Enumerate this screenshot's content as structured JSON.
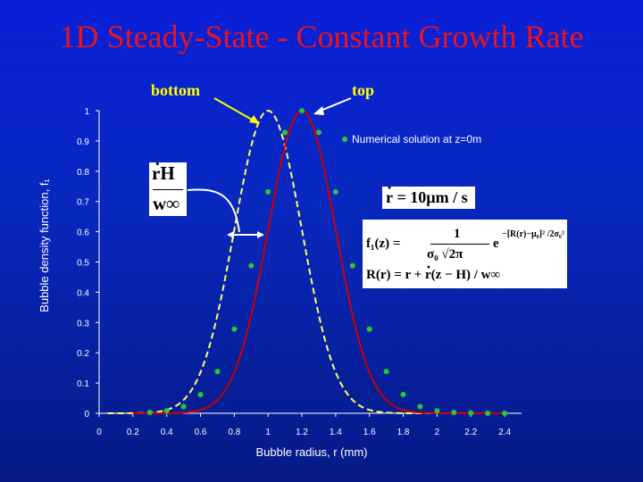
{
  "slide": {
    "title": "1D Steady-State - Constant Growth Rate",
    "background_color": "#0a1fd8",
    "title_color": "#e8141e"
  },
  "annotations": {
    "bottom_label": "bottom",
    "top_label": "top",
    "label_color": "#ffff00",
    "rh_numerator": "rH",
    "rh_denominator": "w∞",
    "growth_rate_prefix": "r",
    "growth_rate_value": " = 10µm / s",
    "eq_line1_lhs": "f₁(z) =",
    "eq_line1_num": "1",
    "eq_line1_den": "σ₀ √2π",
    "eq_line1_exp_base": "e",
    "eq_line1_exponent": "−[R(r)−µ₀]² /2σ₀²",
    "eq_line2_a": "R(r) = r + ",
    "eq_line2_r": "r",
    "eq_line2_b": "(z − H) / w∞"
  },
  "chart_data": {
    "type": "line",
    "xlabel": "Bubble radius, r (mm)",
    "ylabel": "Bubble density function, f₁",
    "xlim": [
      0,
      2.5
    ],
    "ylim": [
      0,
      1
    ],
    "x_ticks": [
      "0",
      "0.2",
      "0.4",
      "0.6",
      "0.8",
      "1",
      "1.2",
      "1.4",
      "1.6",
      "1.8",
      "2",
      "2.2",
      "2.4"
    ],
    "y_ticks": [
      "0",
      "0.1",
      "0.2",
      "0.3",
      "0.4",
      "0.5",
      "0.6",
      "0.7",
      "0.8",
      "0.9",
      "1"
    ],
    "legend_position": "top-right",
    "grid": false,
    "series": [
      {
        "name": "Numerical solution at z=0m",
        "style": "markers",
        "color": "#22cc33",
        "x": [
          0.3,
          0.4,
          0.5,
          0.6,
          0.7,
          0.8,
          0.9,
          1.0,
          1.1,
          1.2,
          1.3,
          1.4,
          1.5,
          1.6,
          1.7,
          1.8,
          1.9,
          2.0,
          2.1,
          2.2,
          2.3,
          2.4
        ],
        "y": [
          0.003,
          0.008,
          0.022,
          0.062,
          0.138,
          0.278,
          0.488,
          0.732,
          0.928,
          1.0,
          0.928,
          0.732,
          0.488,
          0.278,
          0.138,
          0.062,
          0.022,
          0.008,
          0.003,
          0.001,
          0.0,
          0.0
        ]
      },
      {
        "style": "solid",
        "color": "#cc0000",
        "mean": 1.2,
        "sigma": 0.2,
        "range": [
          0.2,
          2.4
        ]
      },
      {
        "style": "dashed",
        "color": "#ffff66",
        "mean": 1.0,
        "sigma": 0.2,
        "range": [
          0.05,
          2.0
        ]
      }
    ]
  }
}
